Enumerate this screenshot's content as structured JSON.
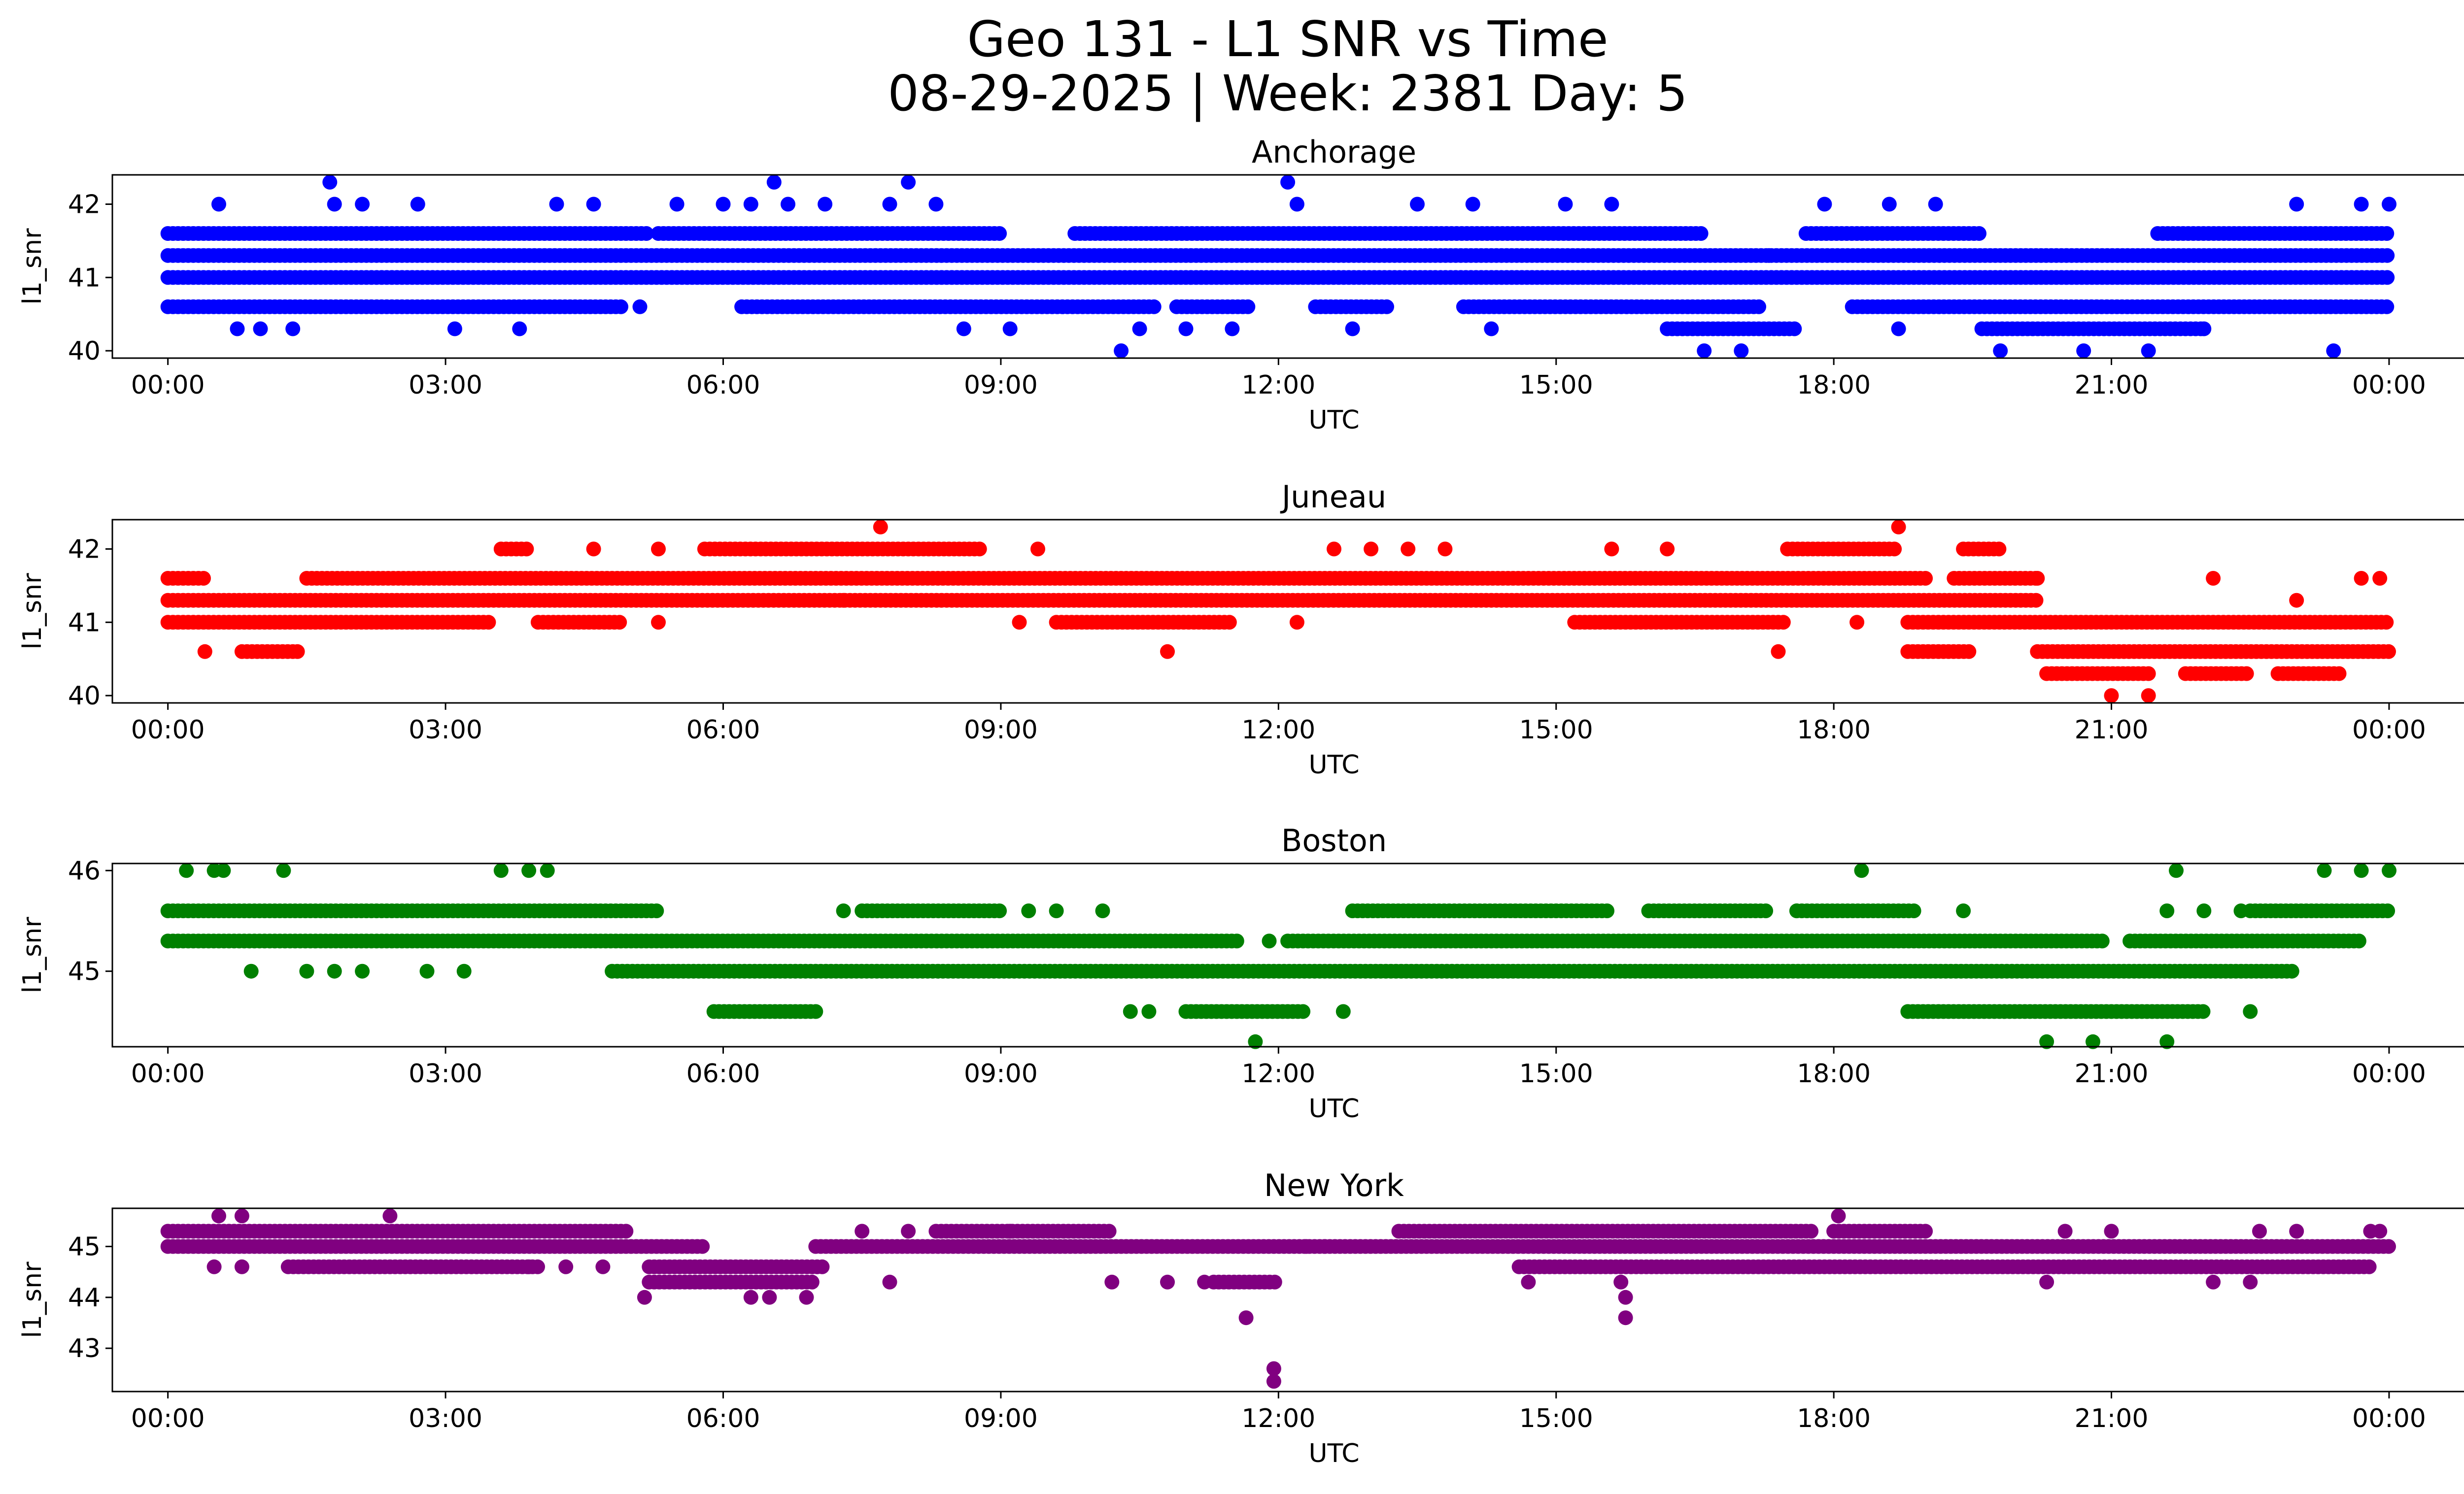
{
  "figure": {
    "title_line1": "Geo 131 - L1 SNR vs Time",
    "title_line2": "08-29-2025 | Week: 2381 Day: 5"
  },
  "chart_data": [
    {
      "type": "scatter",
      "title": "Anchorage",
      "xlabel": "UTC",
      "ylabel": "l1_snr",
      "color": "#0000ff",
      "xlim_hours": [
        -0.6,
        25.8
      ],
      "ylim": [
        39.9,
        42.4
      ],
      "yticks": [
        40,
        41,
        42
      ],
      "xticks": [
        "00:00",
        "03:00",
        "06:00",
        "09:00",
        "12:00",
        "15:00",
        "18:00",
        "21:00",
        "00:00"
      ],
      "levels": [
        {
          "y": 41.0,
          "ranges": [
            [
              0,
              24
            ]
          ]
        },
        {
          "y": 41.3,
          "ranges": [
            [
              0,
              24
            ]
          ]
        },
        {
          "y": 41.6,
          "ranges": [
            [
              0,
              5.2
            ],
            [
              5.3,
              9.0
            ],
            [
              9.8,
              16.6
            ],
            [
              17.7,
              19.6
            ],
            [
              21.5,
              24
            ]
          ]
        },
        {
          "y": 40.6,
          "ranges": [
            [
              0,
              4.9
            ],
            [
              6.2,
              10.7
            ],
            [
              10.9,
              11.7
            ],
            [
              12.4,
              13.2
            ],
            [
              14.0,
              17.2
            ],
            [
              18.2,
              24
            ]
          ]
        },
        {
          "y": 40.3,
          "ranges": [
            [
              16.2,
              17.6
            ],
            [
              19.6,
              22.0
            ]
          ]
        }
      ],
      "extra_points": [
        [
          0.55,
          42.0
        ],
        [
          0.75,
          40.3
        ],
        [
          1.0,
          40.3
        ],
        [
          1.35,
          40.3
        ],
        [
          1.75,
          42.3
        ],
        [
          1.8,
          42.0
        ],
        [
          2.1,
          42.0
        ],
        [
          2.7,
          42.0
        ],
        [
          3.1,
          40.3
        ],
        [
          3.8,
          40.3
        ],
        [
          4.2,
          42.0
        ],
        [
          4.6,
          42.0
        ],
        [
          5.1,
          40.6
        ],
        [
          5.5,
          42.0
        ],
        [
          6.0,
          42.0
        ],
        [
          6.3,
          42.0
        ],
        [
          6.55,
          42.3
        ],
        [
          6.7,
          42.0
        ],
        [
          7.1,
          42.0
        ],
        [
          7.8,
          42.0
        ],
        [
          8.0,
          42.3
        ],
        [
          8.3,
          42.0
        ],
        [
          8.6,
          40.3
        ],
        [
          9.1,
          40.3
        ],
        [
          10.3,
          40.0
        ],
        [
          10.5,
          40.3
        ],
        [
          11.0,
          40.3
        ],
        [
          11.5,
          40.3
        ],
        [
          12.1,
          42.3
        ],
        [
          12.2,
          42.0
        ],
        [
          12.8,
          40.3
        ],
        [
          13.5,
          42.0
        ],
        [
          14.1,
          42.0
        ],
        [
          14.3,
          40.3
        ],
        [
          15.1,
          42.0
        ],
        [
          15.6,
          42.0
        ],
        [
          16.6,
          40.0
        ],
        [
          17.0,
          40.0
        ],
        [
          17.3,
          41.3
        ],
        [
          17.9,
          42.0
        ],
        [
          18.6,
          42.0
        ],
        [
          18.7,
          40.3
        ],
        [
          19.1,
          42.0
        ],
        [
          19.8,
          40.0
        ],
        [
          20.7,
          40.0
        ],
        [
          21.4,
          40.0
        ],
        [
          22.0,
          40.3
        ],
        [
          23.0,
          42.0
        ],
        [
          23.4,
          40.0
        ],
        [
          23.7,
          42.0
        ],
        [
          24.0,
          42.0
        ]
      ]
    },
    {
      "type": "scatter",
      "title": "Juneau",
      "xlabel": "UTC",
      "ylabel": "l1_snr",
      "color": "#ff0000",
      "xlim_hours": [
        -0.6,
        25.8
      ],
      "ylim": [
        39.9,
        42.4
      ],
      "yticks": [
        40,
        41,
        42
      ],
      "xticks": [
        "00:00",
        "03:00",
        "06:00",
        "09:00",
        "12:00",
        "15:00",
        "18:00",
        "21:00",
        "00:00"
      ],
      "levels": [
        {
          "y": 41.3,
          "ranges": [
            [
              0,
              20.2
            ]
          ]
        },
        {
          "y": 41.6,
          "ranges": [
            [
              0,
              0.4
            ],
            [
              1.5,
              19.0
            ],
            [
              19.3,
              20.2
            ]
          ]
        },
        {
          "y": 41.0,
          "ranges": [
            [
              0,
              3.5
            ],
            [
              4.0,
              4.9
            ],
            [
              9.6,
              11.5
            ],
            [
              15.2,
              17.5
            ],
            [
              18.8,
              24
            ]
          ]
        },
        {
          "y": 42.0,
          "ranges": [
            [
              3.6,
              3.9
            ],
            [
              5.8,
              8.8
            ],
            [
              17.5,
              18.7
            ],
            [
              19.4,
              19.8
            ]
          ]
        },
        {
          "y": 40.6,
          "ranges": [
            [
              0.8,
              1.4
            ],
            [
              18.8,
              19.5
            ],
            [
              20.2,
              24
            ]
          ]
        },
        {
          "y": 40.3,
          "ranges": [
            [
              20.3,
              21.4
            ],
            [
              21.8,
              22.5
            ],
            [
              22.8,
              23.5
            ]
          ]
        }
      ],
      "extra_points": [
        [
          0.4,
          40.6
        ],
        [
          1.4,
          40.6
        ],
        [
          4.6,
          42.0
        ],
        [
          5.3,
          42.0
        ],
        [
          5.3,
          41.0
        ],
        [
          7.3,
          41.3
        ],
        [
          7.7,
          42.3
        ],
        [
          9.2,
          41.0
        ],
        [
          9.4,
          42.0
        ],
        [
          10.8,
          40.6
        ],
        [
          12.2,
          41.0
        ],
        [
          12.6,
          42.0
        ],
        [
          13.0,
          42.0
        ],
        [
          13.4,
          42.0
        ],
        [
          13.8,
          42.0
        ],
        [
          15.6,
          42.0
        ],
        [
          16.2,
          42.0
        ],
        [
          17.4,
          40.6
        ],
        [
          18.25,
          41.0
        ],
        [
          18.7,
          42.3
        ],
        [
          20.2,
          41.6
        ],
        [
          21.0,
          40.0
        ],
        [
          21.4,
          40.0
        ],
        [
          22.1,
          41.6
        ],
        [
          23.0,
          41.3
        ],
        [
          23.7,
          41.6
        ],
        [
          23.9,
          41.6
        ]
      ]
    },
    {
      "type": "scatter",
      "title": "Boston",
      "xlabel": "UTC",
      "ylabel": "l1_snr",
      "color": "#008000",
      "xlim_hours": [
        -0.6,
        25.8
      ],
      "ylim": [
        44.25,
        46.07
      ],
      "yticks": [
        45,
        46
      ],
      "xticks": [
        "00:00",
        "03:00",
        "06:00",
        "09:00",
        "12:00",
        "15:00",
        "18:00",
        "21:00",
        "00:00"
      ],
      "levels": [
        {
          "y": 45.3,
          "ranges": [
            [
              0,
              11.6
            ],
            [
              12.1,
              20.9
            ],
            [
              21.2,
              23.7
            ]
          ]
        },
        {
          "y": 45.6,
          "ranges": [
            [
              0,
              5.3
            ],
            [
              7.5,
              9.0
            ],
            [
              12.8,
              15.6
            ],
            [
              16.0,
              17.3
            ],
            [
              17.6,
              18.9
            ],
            [
              22.5,
              24
            ]
          ]
        },
        {
          "y": 45.0,
          "ranges": [
            [
              4.8,
              23.0
            ]
          ]
        },
        {
          "y": 44.6,
          "ranges": [
            [
              5.9,
              7.0
            ],
            [
              11.0,
              12.3
            ],
            [
              18.8,
              22.0
            ]
          ]
        }
      ],
      "extra_points": [
        [
          0.2,
          46.0
        ],
        [
          0.5,
          46.0
        ],
        [
          0.6,
          46.0
        ],
        [
          1.25,
          46.0
        ],
        [
          0.9,
          45.0
        ],
        [
          1.5,
          45.0
        ],
        [
          1.8,
          45.0
        ],
        [
          2.1,
          45.0
        ],
        [
          2.8,
          45.0
        ],
        [
          3.2,
          45.0
        ],
        [
          3.6,
          46.0
        ],
        [
          3.9,
          46.0
        ],
        [
          4.1,
          46.0
        ],
        [
          7.3,
          45.6
        ],
        [
          9.3,
          45.6
        ],
        [
          9.6,
          45.6
        ],
        [
          10.1,
          45.6
        ],
        [
          10.4,
          44.6
        ],
        [
          10.6,
          44.6
        ],
        [
          11.75,
          44.3
        ],
        [
          11.9,
          45.3
        ],
        [
          12.7,
          44.6
        ],
        [
          17.6,
          45.6
        ],
        [
          18.3,
          46.0
        ],
        [
          19.4,
          45.6
        ],
        [
          20.3,
          44.3
        ],
        [
          20.8,
          44.3
        ],
        [
          21.6,
          44.3
        ],
        [
          21.7,
          46.0
        ],
        [
          21.6,
          45.6
        ],
        [
          22.0,
          45.6
        ],
        [
          22.4,
          45.6
        ],
        [
          22.5,
          44.6
        ],
        [
          23.3,
          46.0
        ],
        [
          23.7,
          46.0
        ],
        [
          24.0,
          46.0
        ]
      ]
    },
    {
      "type": "scatter",
      "title": "New York",
      "xlabel": "UTC",
      "ylabel": "l1_snr",
      "color": "#800080",
      "xlim_hours": [
        -0.6,
        25.8
      ],
      "ylim": [
        42.15,
        45.75
      ],
      "yticks": [
        43,
        44,
        45
      ],
      "xticks": [
        "00:00",
        "03:00",
        "06:00",
        "09:00",
        "12:00",
        "15:00",
        "18:00",
        "21:00",
        "00:00"
      ],
      "levels": [
        {
          "y": 45.0,
          "ranges": [
            [
              0,
              5.8
            ],
            [
              7.0,
              24
            ]
          ]
        },
        {
          "y": 45.3,
          "ranges": [
            [
              0,
              5.0
            ],
            [
              8.3,
              10.2
            ],
            [
              13.3,
              17.8
            ],
            [
              18.0,
              19.0
            ]
          ]
        },
        {
          "y": 44.6,
          "ranges": [
            [
              1.3,
              4.0
            ],
            [
              5.2,
              7.1
            ],
            [
              14.6,
              23.8
            ]
          ]
        },
        {
          "y": 44.3,
          "ranges": [
            [
              5.2,
              7.0
            ],
            [
              11.3,
              12.0
            ]
          ]
        }
      ],
      "extra_points": [
        [
          0.5,
          44.6
        ],
        [
          0.55,
          45.6
        ],
        [
          0.8,
          45.6
        ],
        [
          0.8,
          44.6
        ],
        [
          2.4,
          45.6
        ],
        [
          3.9,
          44.6
        ],
        [
          4.3,
          44.6
        ],
        [
          4.7,
          44.6
        ],
        [
          5.15,
          44.0
        ],
        [
          6.3,
          44.0
        ],
        [
          6.5,
          44.0
        ],
        [
          6.9,
          44.0
        ],
        [
          7.5,
          45.3
        ],
        [
          7.8,
          44.3
        ],
        [
          8.0,
          45.3
        ],
        [
          9.1,
          45.3
        ],
        [
          10.2,
          44.3
        ],
        [
          10.8,
          44.3
        ],
        [
          11.2,
          44.3
        ],
        [
          11.65,
          43.6
        ],
        [
          11.95,
          42.6
        ],
        [
          11.95,
          42.35
        ],
        [
          12.3,
          45.0
        ],
        [
          12.5,
          45.0
        ],
        [
          14.7,
          44.3
        ],
        [
          15.7,
          44.3
        ],
        [
          15.75,
          44.0
        ],
        [
          15.75,
          43.6
        ],
        [
          18.05,
          45.6
        ],
        [
          20.3,
          44.3
        ],
        [
          20.5,
          45.3
        ],
        [
          21.0,
          45.3
        ],
        [
          22.1,
          44.3
        ],
        [
          22.5,
          44.3
        ],
        [
          22.6,
          45.3
        ],
        [
          23.0,
          45.3
        ],
        [
          23.8,
          45.3
        ],
        [
          23.9,
          45.3
        ]
      ]
    }
  ]
}
